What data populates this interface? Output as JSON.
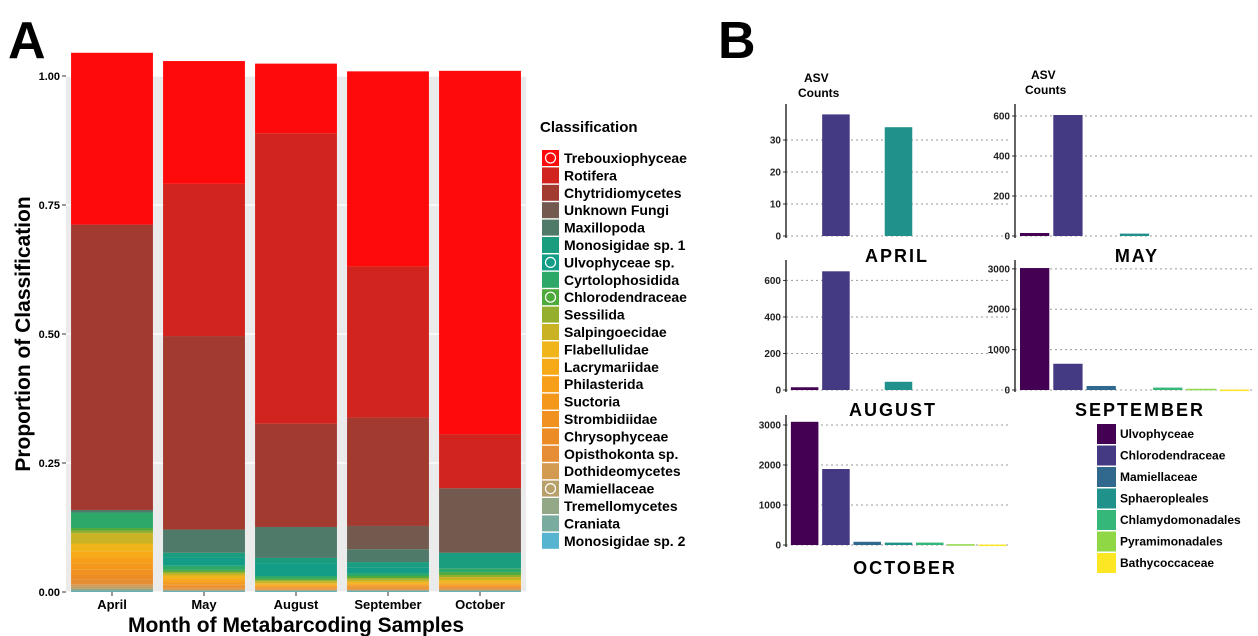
{
  "panel_a_label": "A",
  "panel_b_label": "B",
  "chart_data": [
    {
      "type": "bar",
      "stacked": true,
      "xlabel": "Month of Metabarcoding Samples",
      "ylabel": "Proportion of Classification",
      "ylim": [
        0,
        1
      ],
      "yticks": [
        "0.00",
        "0.25",
        "0.50",
        "0.75",
        "1.00"
      ],
      "grid": true,
      "legend_title": "Classification",
      "legend_position": "right",
      "categories": [
        "April",
        "May",
        "August",
        "September",
        "October"
      ],
      "series": [
        {
          "name": "Trebouxiophyceae",
          "color": "#ff0a0a",
          "marker": true,
          "values": [
            0.333,
            0.238,
            0.135,
            0.378,
            0.704
          ]
        },
        {
          "name": "Rotifera",
          "color": "#d2241e",
          "values": [
            0.0,
            0.295,
            0.563,
            0.293,
            0.105
          ]
        },
        {
          "name": "Chytridiomycetes",
          "color": "#a23a30",
          "values": [
            0.553,
            0.375,
            0.2,
            0.21,
            0.0
          ]
        },
        {
          "name": "Unknown Fungi",
          "color": "#725a4e",
          "values": [
            0.0,
            0.0,
            0.0,
            0.045,
            0.125
          ]
        },
        {
          "name": "Maxillopoda",
          "color": "#4f7a6a",
          "values": [
            0.005,
            0.045,
            0.06,
            0.025,
            0.0
          ]
        },
        {
          "name": "Monosigidae sp. 1",
          "color": "#1a9c7e",
          "values": [
            0.0,
            0.01,
            0.01,
            0.01,
            0.03
          ]
        },
        {
          "name": "Ulvophyceae sp.",
          "color": "#139c86",
          "marker": true,
          "values": [
            0.0,
            0.015,
            0.025,
            0.012,
            0.0
          ]
        },
        {
          "name": "Cyrtolophosidida",
          "color": "#2ea868",
          "values": [
            0.03,
            0.008,
            0.005,
            0.005,
            0.008
          ]
        },
        {
          "name": "Chlorodendraceae",
          "color": "#4faa3c",
          "marker": true,
          "values": [
            0.005,
            0.004,
            0.003,
            0.004,
            0.005
          ]
        },
        {
          "name": "Sessilida",
          "color": "#94ae2e",
          "values": [
            0.005,
            0.003,
            0.002,
            0.003,
            0.004
          ]
        },
        {
          "name": "Salpingoecidae",
          "color": "#c9b324",
          "values": [
            0.02,
            0.004,
            0.004,
            0.004,
            0.006
          ]
        },
        {
          "name": "Flabellulidae",
          "color": "#f0b51a",
          "values": [
            0.015,
            0.005,
            0.002,
            0.003,
            0.004
          ]
        },
        {
          "name": "Lacrymariidae",
          "color": "#f7aa17",
          "values": [
            0.012,
            0.004,
            0.002,
            0.002,
            0.003
          ]
        },
        {
          "name": "Philasterida",
          "color": "#f79f18",
          "values": [
            0.012,
            0.004,
            0.002,
            0.002,
            0.002
          ]
        },
        {
          "name": "Suctoria",
          "color": "#f4981c",
          "values": [
            0.012,
            0.004,
            0.002,
            0.002,
            0.002
          ]
        },
        {
          "name": "Strombidiidae",
          "color": "#f19220",
          "values": [
            0.01,
            0.003,
            0.002,
            0.002,
            0.002
          ]
        },
        {
          "name": "Chrysophyceae",
          "color": "#ec8c24",
          "values": [
            0.009,
            0.003,
            0.001,
            0.002,
            0.002
          ]
        },
        {
          "name": "Opisthokonta sp.",
          "color": "#e68e36",
          "values": [
            0.009,
            0.003,
            0.001,
            0.002,
            0.002
          ]
        },
        {
          "name": "Dothideomycetes",
          "color": "#d39a52",
          "values": [
            0.005,
            0.002,
            0.001,
            0.001,
            0.002
          ]
        },
        {
          "name": "Mamiellaceae",
          "color": "#b8a06a",
          "marker": true,
          "values": [
            0.004,
            0.001,
            0.001,
            0.001,
            0.001
          ]
        },
        {
          "name": "Tremellomycetes",
          "color": "#93a886",
          "values": [
            0.003,
            0.001,
            0.001,
            0.001,
            0.001
          ]
        },
        {
          "name": "Craniata",
          "color": "#7aab9f",
          "values": [
            0.002,
            0.001,
            0.001,
            0.001,
            0.001
          ]
        },
        {
          "name": "Monosigidae sp. 2",
          "color": "#56b4d1",
          "values": [
            0.001,
            0.001,
            0.001,
            0.001,
            0.001
          ]
        }
      ]
    },
    {
      "type": "bar",
      "title": "APRIL",
      "ylabel": "ASV\nCounts",
      "yticks": [
        0,
        10,
        20,
        30
      ],
      "ylim": [
        0,
        40
      ],
      "categories": [
        "Ulvophyceae",
        "Chlorodendraceae",
        "Mamiellaceae",
        "Sphaeropleales",
        "Chlamydomonadales",
        "Pyramimonadales",
        "Bathycoccaceae"
      ],
      "values": [
        0,
        38,
        0,
        34,
        0,
        0,
        0
      ]
    },
    {
      "type": "bar",
      "title": "MAY",
      "ylabel": "ASV\nCounts",
      "yticks": [
        0,
        200,
        400,
        600
      ],
      "ylim": [
        0,
        640
      ],
      "categories": [
        "Ulvophyceae",
        "Chlorodendraceae",
        "Mamiellaceae",
        "Sphaeropleales",
        "Chlamydomonadales",
        "Pyramimonadales",
        "Bathycoccaceae"
      ],
      "values": [
        15,
        605,
        0,
        12,
        0,
        0,
        0
      ]
    },
    {
      "type": "bar",
      "title": "AUGUST",
      "yticks": [
        0,
        200,
        400,
        600
      ],
      "ylim": [
        0,
        690
      ],
      "categories": [
        "Ulvophyceae",
        "Chlorodendraceae",
        "Mamiellaceae",
        "Sphaeropleales",
        "Chlamydomonadales",
        "Pyramimonadales",
        "Bathycoccaceae"
      ],
      "values": [
        15,
        650,
        0,
        45,
        0,
        0,
        0
      ]
    },
    {
      "type": "bar",
      "title": "SEPTEMBER",
      "yticks": [
        0,
        1000,
        2000,
        3000
      ],
      "ylim": [
        0,
        3120
      ],
      "categories": [
        "Ulvophyceae",
        "Chlorodendraceae",
        "Mamiellaceae",
        "Sphaeropleales",
        "Chlamydomonadales",
        "Pyramimonadales",
        "Bathycoccaceae"
      ],
      "values": [
        3020,
        650,
        100,
        0,
        60,
        30,
        10
      ]
    },
    {
      "type": "bar",
      "title": "OCTOBER",
      "yticks": [
        0,
        1000,
        2000,
        3000
      ],
      "ylim": [
        0,
        3150
      ],
      "categories": [
        "Ulvophyceae",
        "Chlorodendraceae",
        "Mamiellaceae",
        "Sphaeropleales",
        "Chlamydomonadales",
        "Pyramimonadales",
        "Bathycoccaceae"
      ],
      "values": [
        3080,
        1900,
        80,
        60,
        60,
        20,
        10
      ]
    }
  ],
  "panel_b_legend": [
    {
      "name": "Ulvophyceae",
      "color": "#440154"
    },
    {
      "name": "Chlorodendraceae",
      "color": "#443a83"
    },
    {
      "name": "Mamiellaceae",
      "color": "#31688e"
    },
    {
      "name": "Sphaeropleales",
      "color": "#21918c"
    },
    {
      "name": "Chlamydomonadales",
      "color": "#35b779"
    },
    {
      "name": "Pyramimonadales",
      "color": "#8fd744"
    },
    {
      "name": "Bathycoccaceae",
      "color": "#fde725"
    }
  ]
}
